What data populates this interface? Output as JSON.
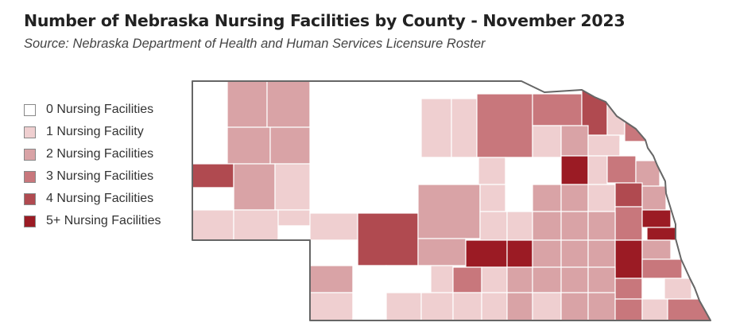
{
  "header": {
    "title": "Number of Nebraska Nursing Facilities by County - November 2023",
    "subtitle": "Source: Nebraska Department of Health and Human Services Licensure Roster"
  },
  "legend": {
    "items": [
      {
        "label": "0 Nursing Facilities",
        "color": "#ffffff"
      },
      {
        "label": "1 Nursing Facility",
        "color": "#efcfd0"
      },
      {
        "label": "2 Nursing Facilities",
        "color": "#d9a3a6"
      },
      {
        "label": "3 Nursing Facilities",
        "color": "#c8777c"
      },
      {
        "label": "4 Nursing Facilities",
        "color": "#b04a50"
      },
      {
        "label": "5+ Nursing Facilities",
        "color": "#9b1b24"
      }
    ]
  },
  "map": {
    "state": "Nebraska",
    "border_color": "#666666",
    "county_line_color": "#ffffff"
  }
}
